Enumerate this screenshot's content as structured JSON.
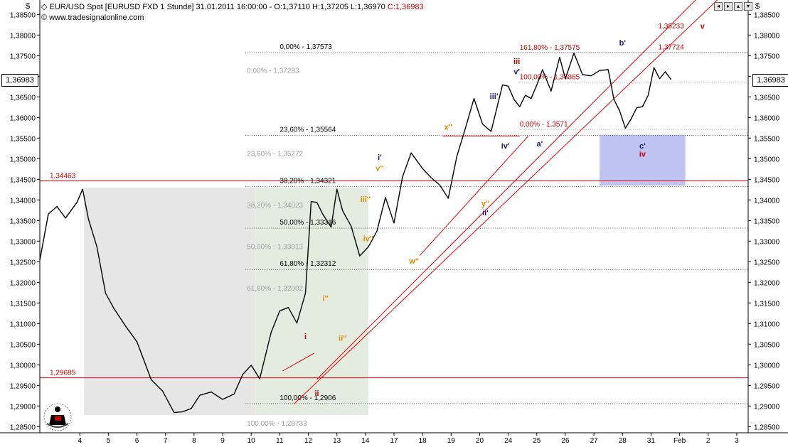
{
  "header": {
    "title": "EUR/USD Spot [EURUSD FXD  1 Stunde] 31.01.2011 16:00:00 - O:1,37110 H:1,37205 L:1,36970",
    "close": "C:1,36983",
    "source": "© www.tradesignalonline.com",
    "axis_unit_left": "$",
    "axis_unit_right": "$",
    "current_price": "1,36983"
  },
  "colors": {
    "background": "#ffffff",
    "price": "#000000",
    "trendline": "#e8000a",
    "orange_wave": "#e08a00",
    "red_wave": "#cc0000",
    "blue_wave": "#1a1a80",
    "fib_text": "#000000",
    "fib_text_grey": "#a0a0a0",
    "grey_zone": "#e6e6e6",
    "green_zone": "#e3ecdf",
    "target_zone": "#b8bcf0"
  },
  "chart_data": {
    "type": "line",
    "title": "EUR/USD Spot [EURUSD FXD  1 Stunde]",
    "xlabel": "",
    "ylabel": "",
    "ylim": [
      1.2835,
      1.3885
    ],
    "y_ticks": [
      "1,28500",
      "1,29000",
      "1,29500",
      "1,30000",
      "1,30500",
      "1,31000",
      "1,31500",
      "1,32000",
      "1,32500",
      "1,33000",
      "1,33500",
      "1,34000",
      "1,34500",
      "1,35000",
      "1,35500",
      "1,36000",
      "1,36500",
      "1,37000",
      "1,37500",
      "1,38000",
      "1,38500"
    ],
    "y_tick_values": [
      1.285,
      1.29,
      1.295,
      1.3,
      1.305,
      1.31,
      1.315,
      1.32,
      1.325,
      1.33,
      1.335,
      1.34,
      1.345,
      1.35,
      1.355,
      1.36,
      1.365,
      1.37,
      1.375,
      1.38,
      1.385
    ],
    "x_ticks": [
      "4",
      "5",
      "6",
      "7",
      "8",
      "9",
      "10",
      "11",
      "12",
      "13",
      "14",
      "17",
      "18",
      "19",
      "20",
      "24",
      "25",
      "26",
      "27",
      "28",
      "31",
      "Feb",
      "2",
      "3"
    ],
    "x_tick_pos": [
      4,
      5,
      6,
      7,
      8,
      9,
      10,
      11,
      12,
      13,
      14,
      15,
      16,
      17,
      18,
      19,
      20,
      21,
      22,
      23,
      24,
      25,
      26,
      27
    ],
    "xlim": [
      2.6,
      27.4
    ],
    "series": [
      {
        "x": [
          2.6,
          2.9,
          3.2,
          3.5,
          3.9,
          4.1,
          4.3,
          4.6,
          4.9,
          5.2,
          5.6,
          6.0,
          6.5,
          6.9,
          7.3,
          7.6,
          7.9,
          8.2,
          8.6,
          9.0,
          9.4,
          9.7,
          10.0,
          10.3,
          10.7,
          11.0,
          11.3,
          11.6,
          11.9,
          12.1,
          12.3,
          12.5,
          12.8,
          13.0,
          13.2,
          13.5,
          13.8,
          14.1,
          14.4,
          14.7,
          15.0,
          15.3,
          15.6,
          16.0,
          16.3,
          16.6,
          16.9,
          17.2,
          17.5,
          17.8,
          18.1,
          18.4,
          18.8,
          19.0,
          19.2,
          19.4,
          19.6,
          19.8,
          20.0,
          20.2,
          20.5,
          20.8,
          21.0,
          21.3,
          21.6,
          21.9,
          22.2,
          22.5,
          22.7,
          22.9,
          23.1,
          23.3,
          23.5,
          23.7,
          23.9,
          24.1,
          24.3,
          24.5,
          24.7
        ],
        "values": [
          1.326,
          1.336,
          1.339,
          1.335,
          1.34,
          1.342,
          1.336,
          1.328,
          1.318,
          1.313,
          1.31,
          1.305,
          1.297,
          1.293,
          1.289,
          1.288,
          1.29,
          1.292,
          1.294,
          1.291,
          1.2935,
          1.297,
          1.3005,
          1.296,
          1.3085,
          1.3125,
          1.3145,
          1.3095,
          1.318,
          1.339,
          1.34,
          1.336,
          1.334,
          1.342,
          1.338,
          1.333,
          1.327,
          1.328,
          1.333,
          1.34,
          1.335,
          1.345,
          1.352,
          1.347,
          1.346,
          1.343,
          1.341,
          1.35,
          1.358,
          1.364,
          1.359,
          1.356,
          1.3685,
          1.367,
          1.365,
          1.362,
          1.366,
          1.364,
          1.3685,
          1.371,
          1.367,
          1.374,
          1.37,
          1.375,
          1.371,
          1.3695,
          1.372,
          1.371,
          1.365,
          1.361,
          1.358,
          1.359,
          1.363,
          1.362,
          1.366,
          1.3715,
          1.37,
          1.3705,
          1.3698
        ]
      }
    ],
    "horizontal_levels": [
      {
        "value": 1.34463,
        "label": "1,34463"
      },
      {
        "value": 1.29685,
        "label": "1,29685"
      }
    ],
    "fib_levels": [
      {
        "value": 1.37573,
        "label": "0,00% - 1,37573"
      },
      {
        "value": 1.35564,
        "label": "23,60% - 1,35564"
      },
      {
        "value": 1.34321,
        "label": "38,20% - 1,34321"
      },
      {
        "value": 1.33316,
        "label": "50,00% - 1,33316"
      },
      {
        "value": 1.32312,
        "label": "61,80% - 1,32312"
      },
      {
        "value": 1.2906,
        "label": "100,00% - 1,2906"
      }
    ],
    "fib_levels_grey": [
      {
        "value": 1.37293,
        "label": "0,00% - 1,37293"
      },
      {
        "value": 1.35272,
        "label": "23,60% - 1,35272"
      },
      {
        "value": 1.34023,
        "label": "38,20% - 1,34023"
      },
      {
        "value": 1.33013,
        "label": "50,00% - 1,33013"
      },
      {
        "value": 1.32002,
        "label": "61,80% - 1,32002"
      },
      {
        "value": 1.28733,
        "label": "100,00% - 1,28733"
      }
    ],
    "extension_levels": [
      {
        "value": 1.37575,
        "label": "161,80% - 1,37575"
      },
      {
        "value": 1.3686,
        "label": "100,00% - 1,36865"
      },
      {
        "value": 1.3571,
        "label": "0,00% - 1,3571"
      }
    ],
    "target_labels": [
      {
        "value": 1.38233,
        "label": "1,38233"
      },
      {
        "value": 1.37724,
        "label": "1,37724"
      }
    ],
    "wave_labels": [
      {
        "text": "i",
        "color": "red",
        "x": 11.9,
        "y": 1.3063
      },
      {
        "text": "ii",
        "color": "red",
        "x": 12.3,
        "y": 1.2925
      },
      {
        "text": "iii",
        "color": "red",
        "x": 19.3,
        "y": 1.373
      },
      {
        "text": "iv",
        "color": "red",
        "x": 23.7,
        "y": 1.3505
      },
      {
        "text": "v",
        "color": "red",
        "x": 25.8,
        "y": 1.3815
      },
      {
        "text": "i''",
        "color": "orange",
        "x": 12.6,
        "y": 1.3155
      },
      {
        "text": "ii''",
        "color": "orange",
        "x": 13.2,
        "y": 1.3058
      },
      {
        "text": "iii''",
        "color": "orange",
        "x": 14.0,
        "y": 1.3395
      },
      {
        "text": "iv''",
        "color": "orange",
        "x": 14.1,
        "y": 1.33
      },
      {
        "text": "v''",
        "color": "orange",
        "x": 14.5,
        "y": 1.347
      },
      {
        "text": "w''",
        "color": "orange",
        "x": 15.7,
        "y": 1.3245
      },
      {
        "text": "x''",
        "color": "orange",
        "x": 16.9,
        "y": 1.357
      },
      {
        "text": "y''",
        "color": "orange",
        "x": 18.2,
        "y": 1.3385
      },
      {
        "text": "i'",
        "color": "blue",
        "x": 14.5,
        "y": 1.3497
      },
      {
        "text": "ii'",
        "color": "blue",
        "x": 18.2,
        "y": 1.3363
      },
      {
        "text": "iii'",
        "color": "blue",
        "x": 18.5,
        "y": 1.3645
      },
      {
        "text": "iv'",
        "color": "blue",
        "x": 18.9,
        "y": 1.3525
      },
      {
        "text": "v'",
        "color": "blue",
        "x": 19.3,
        "y": 1.3705
      },
      {
        "text": "a'",
        "color": "blue",
        "x": 20.1,
        "y": 1.353
      },
      {
        "text": "b'",
        "color": "blue",
        "x": 23.0,
        "y": 1.3775
      },
      {
        "text": "c'",
        "color": "blue",
        "x": 23.7,
        "y": 1.3525
      }
    ],
    "legend": "none",
    "grid": false
  }
}
